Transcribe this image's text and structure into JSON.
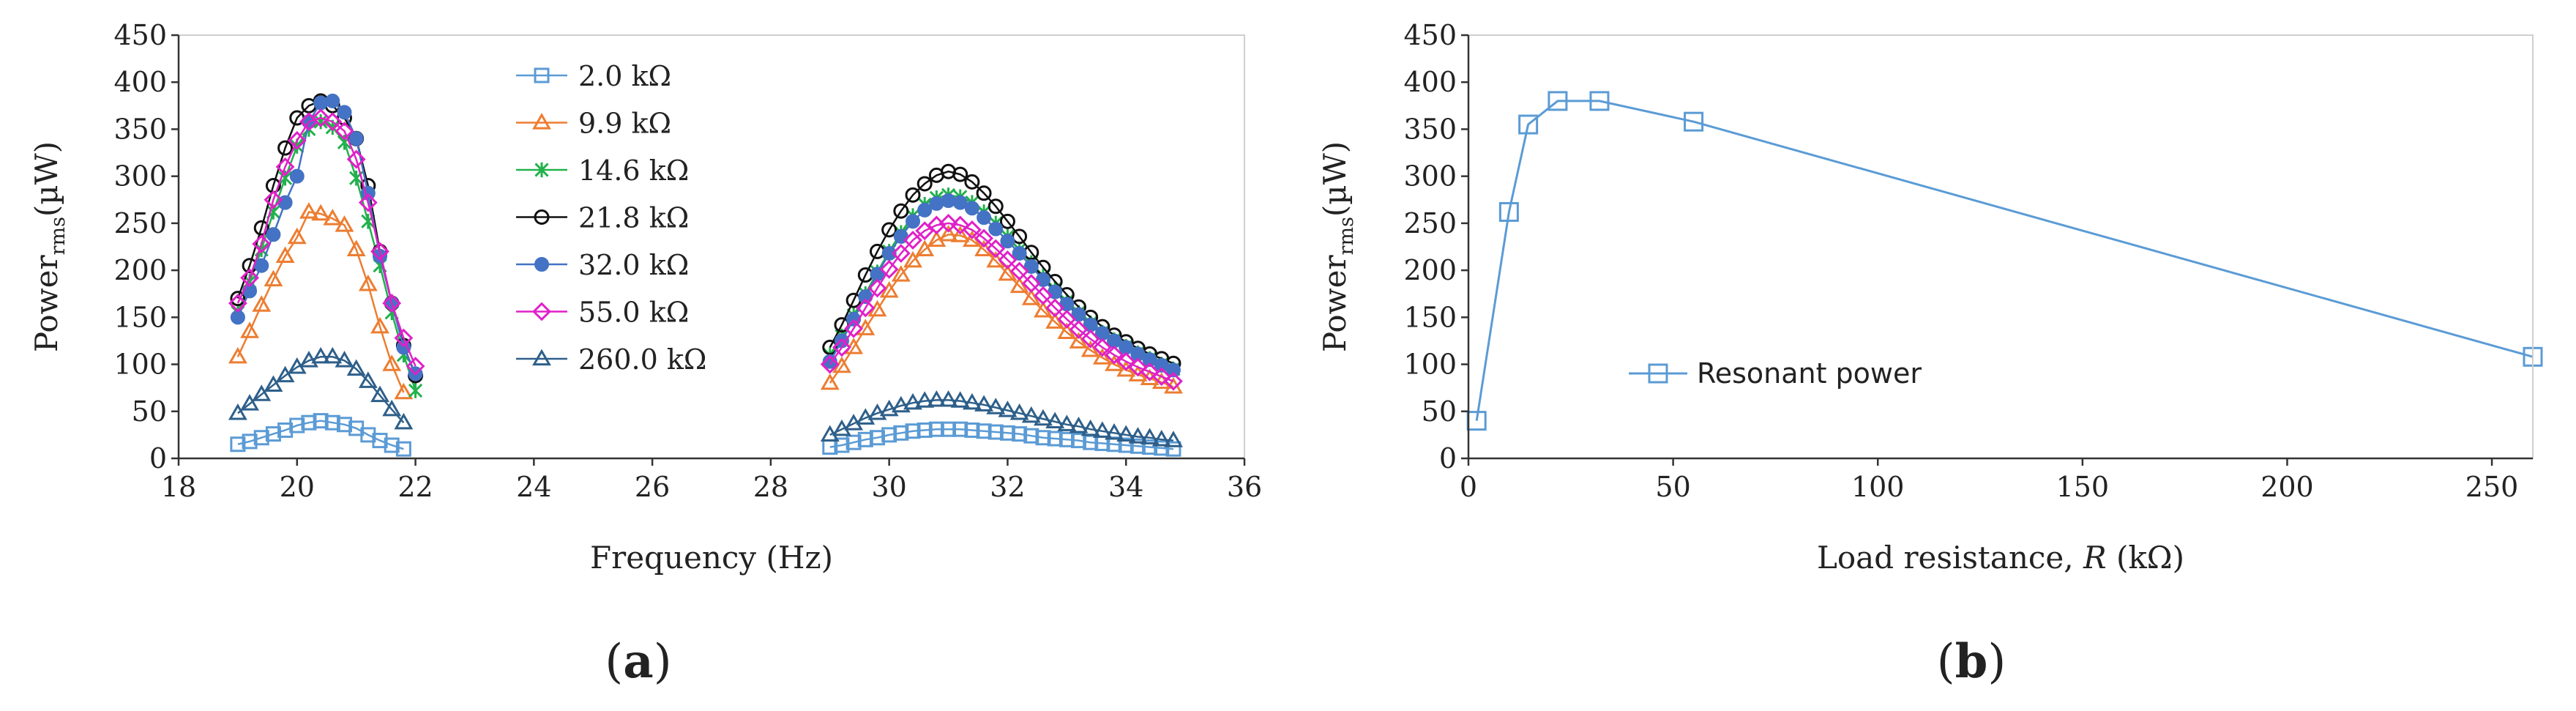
{
  "chart_data": [
    {
      "type": "line",
      "panel": "a",
      "panel_label": "a",
      "title": "",
      "xlabel": "Frequency (Hz)",
      "ylabel_main": "Power",
      "ylabel_sub": "rms",
      "ylabel_unit": "(µW)",
      "xlim": [
        18,
        36
      ],
      "ylim": [
        0,
        450
      ],
      "xticks": [
        18,
        20,
        22,
        24,
        26,
        28,
        30,
        32,
        34,
        36
      ],
      "yticks": [
        0,
        50,
        100,
        150,
        200,
        250,
        300,
        350,
        400,
        450
      ],
      "grid": false,
      "legend_position": "top-center",
      "series": [
        {
          "name": "2.0 kΩ",
          "color": "#5b9bd5",
          "marker": "square",
          "band1_x": [
            19.0,
            19.2,
            19.4,
            19.6,
            19.8,
            20.0,
            20.2,
            20.4,
            20.6,
            20.8,
            21.0,
            21.2,
            21.4,
            21.6,
            21.8
          ],
          "band1_y": [
            15,
            18,
            22,
            26,
            30,
            35,
            38,
            40,
            38,
            36,
            32,
            25,
            19,
            14,
            10
          ],
          "band2_x": [
            29.0,
            29.2,
            29.4,
            29.6,
            29.8,
            30.0,
            30.2,
            30.4,
            30.6,
            30.8,
            31.0,
            31.2,
            31.4,
            31.6,
            31.8,
            32.0,
            32.2,
            32.4,
            32.6,
            32.8,
            33.0,
            33.2,
            33.4,
            33.6,
            33.8,
            34.0,
            34.2,
            34.4,
            34.6,
            34.8
          ],
          "band2_y": [
            12,
            14,
            17,
            20,
            22,
            25,
            27,
            29,
            30,
            31,
            31,
            31,
            30,
            29,
            28,
            27,
            26,
            24,
            22,
            21,
            20,
            19,
            17,
            16,
            15,
            14,
            13,
            12,
            11,
            10
          ]
        },
        {
          "name": "9.9 kΩ",
          "color": "#ed7d31",
          "marker": "triangle",
          "band1_x": [
            19.0,
            19.2,
            19.4,
            19.6,
            19.8,
            20.0,
            20.2,
            20.4,
            20.6,
            20.8,
            21.0,
            21.2,
            21.4,
            21.6,
            21.8
          ],
          "band1_y": [
            108,
            135,
            163,
            190,
            215,
            235,
            262,
            260,
            255,
            248,
            222,
            185,
            140,
            100,
            70
          ],
          "band2_x": [
            29.0,
            29.2,
            29.4,
            29.6,
            29.8,
            30.0,
            30.2,
            30.4,
            30.6,
            30.8,
            31.0,
            31.2,
            31.4,
            31.6,
            31.8,
            32.0,
            32.2,
            32.4,
            32.6,
            32.8,
            33.0,
            33.2,
            33.4,
            33.6,
            33.8,
            34.0,
            34.2,
            34.4,
            34.6,
            34.8
          ],
          "band2_y": [
            80,
            98,
            118,
            138,
            158,
            178,
            195,
            210,
            222,
            232,
            238,
            237,
            232,
            222,
            210,
            196,
            183,
            170,
            157,
            145,
            134,
            124,
            115,
            107,
            100,
            94,
            89,
            85,
            81,
            76
          ]
        },
        {
          "name": "14.6 kΩ",
          "color": "#22b14c",
          "marker": "star",
          "band1_x": [
            19.0,
            19.2,
            19.4,
            19.6,
            19.8,
            20.0,
            20.2,
            20.4,
            20.6,
            20.8,
            21.0,
            21.2,
            21.4,
            21.6,
            21.8,
            22.0
          ],
          "band1_y": [
            155,
            188,
            222,
            262,
            298,
            332,
            350,
            358,
            352,
            336,
            298,
            252,
            205,
            155,
            110,
            72
          ],
          "band2_x": [
            29.0,
            29.2,
            29.4,
            29.6,
            29.8,
            30.0,
            30.2,
            30.4,
            30.6,
            30.8,
            31.0,
            31.2,
            31.4,
            31.6,
            31.8,
            32.0,
            32.2,
            32.4,
            32.6,
            32.8,
            33.0,
            33.2,
            33.4,
            33.6,
            33.8,
            34.0,
            34.2,
            34.4,
            34.6,
            34.8
          ],
          "band2_y": [
            110,
            130,
            152,
            175,
            198,
            220,
            240,
            258,
            270,
            277,
            280,
            278,
            272,
            262,
            250,
            236,
            222,
            208,
            194,
            180,
            167,
            155,
            144,
            134,
            126,
            119,
            112,
            106,
            100,
            95
          ]
        },
        {
          "name": "21.8 kΩ",
          "color": "#111111",
          "marker": "circle-open",
          "band1_x": [
            19.0,
            19.2,
            19.4,
            19.6,
            19.8,
            20.0,
            20.2,
            20.4,
            20.6,
            20.8,
            21.0,
            21.2,
            21.4,
            21.6,
            21.8,
            22.0
          ],
          "band1_y": [
            170,
            205,
            245,
            290,
            330,
            362,
            375,
            380,
            375,
            362,
            340,
            290,
            220,
            165,
            120,
            88
          ],
          "band2_x": [
            29.0,
            29.2,
            29.4,
            29.6,
            29.8,
            30.0,
            30.2,
            30.4,
            30.6,
            30.8,
            31.0,
            31.2,
            31.4,
            31.6,
            31.8,
            32.0,
            32.2,
            32.4,
            32.6,
            32.8,
            33.0,
            33.2,
            33.4,
            33.6,
            33.8,
            34.0,
            34.2,
            34.4,
            34.6,
            34.8
          ],
          "band2_y": [
            118,
            142,
            168,
            195,
            220,
            243,
            263,
            280,
            292,
            301,
            305,
            302,
            294,
            282,
            268,
            252,
            236,
            219,
            203,
            188,
            174,
            161,
            150,
            140,
            131,
            124,
            117,
            111,
            106,
            101
          ]
        },
        {
          "name": "32.0 kΩ",
          "color": "#4472c4",
          "marker": "circle-filled",
          "band1_x": [
            19.0,
            19.2,
            19.4,
            19.6,
            19.8,
            20.0,
            20.2,
            20.4,
            20.6,
            20.8,
            21.0,
            21.2,
            21.4,
            21.6,
            21.8,
            22.0
          ],
          "band1_y": [
            150,
            178,
            205,
            238,
            272,
            300,
            358,
            378,
            380,
            368,
            340,
            282,
            215,
            165,
            118,
            90
          ],
          "band2_x": [
            29.0,
            29.2,
            29.4,
            29.6,
            29.8,
            30.0,
            30.2,
            30.4,
            30.6,
            30.8,
            31.0,
            31.2,
            31.4,
            31.6,
            31.8,
            32.0,
            32.2,
            32.4,
            32.6,
            32.8,
            33.0,
            33.2,
            33.4,
            33.6,
            33.8,
            34.0,
            34.2,
            34.4,
            34.6,
            34.8
          ],
          "band2_y": [
            103,
            125,
            148,
            172,
            196,
            218,
            236,
            252,
            264,
            271,
            274,
            272,
            266,
            256,
            244,
            231,
            218,
            204,
            190,
            177,
            164,
            153,
            142,
            133,
            125,
            118,
            111,
            105,
            99,
            94
          ]
        },
        {
          "name": "55.0 kΩ",
          "color": "#e020c8",
          "marker": "diamond",
          "band1_x": [
            19.0,
            19.2,
            19.4,
            19.6,
            19.8,
            20.0,
            20.2,
            20.4,
            20.6,
            20.8,
            21.0,
            21.2,
            21.4,
            21.6,
            21.8,
            22.0
          ],
          "band1_y": [
            165,
            192,
            228,
            275,
            310,
            338,
            358,
            362,
            358,
            348,
            318,
            272,
            220,
            165,
            128,
            98
          ],
          "band2_x": [
            29.0,
            29.2,
            29.4,
            29.6,
            29.8,
            30.0,
            30.2,
            30.4,
            30.6,
            30.8,
            31.0,
            31.2,
            31.4,
            31.6,
            31.8,
            32.0,
            32.2,
            32.4,
            32.6,
            32.8,
            33.0,
            33.2,
            33.4,
            33.6,
            33.8,
            34.0,
            34.2,
            34.4,
            34.6,
            34.8
          ],
          "band2_y": [
            100,
            118,
            138,
            160,
            181,
            201,
            218,
            232,
            242,
            248,
            250,
            248,
            243,
            234,
            223,
            211,
            199,
            186,
            173,
            160,
            148,
            137,
            127,
            118,
            110,
            103,
            97,
            92,
            87,
            82
          ]
        },
        {
          "name": "260.0 kΩ",
          "color": "#2e5f8a",
          "marker": "triangle",
          "band1_x": [
            19.0,
            19.2,
            19.4,
            19.6,
            19.8,
            20.0,
            20.2,
            20.4,
            20.6,
            20.8,
            21.0,
            21.2,
            21.4,
            21.6,
            21.8
          ],
          "band1_y": [
            48,
            58,
            68,
            78,
            88,
            97,
            104,
            108,
            108,
            104,
            95,
            82,
            67,
            52,
            38
          ],
          "band2_x": [
            29.0,
            29.2,
            29.4,
            29.6,
            29.8,
            30.0,
            30.2,
            30.4,
            30.6,
            30.8,
            31.0,
            31.2,
            31.4,
            31.6,
            31.8,
            32.0,
            32.2,
            32.4,
            32.6,
            32.8,
            33.0,
            33.2,
            33.4,
            33.6,
            33.8,
            34.0,
            34.2,
            34.4,
            34.6,
            34.8
          ],
          "band2_y": [
            25,
            31,
            37,
            43,
            48,
            52,
            56,
            59,
            61,
            62,
            62,
            61,
            59,
            57,
            54,
            51,
            48,
            45,
            42,
            39,
            36,
            34,
            31,
            29,
            27,
            25,
            23,
            22,
            20,
            19
          ]
        }
      ]
    },
    {
      "type": "line",
      "panel": "b",
      "panel_label": "b",
      "title": "",
      "xlabel_pre": "Load resistance,",
      "xlabel_var": "R",
      "xlabel_unit": "(kΩ)",
      "ylabel_main": "Power",
      "ylabel_sub": "rms",
      "ylabel_unit": "(µW)",
      "xlim": [
        0,
        260
      ],
      "ylim": [
        0,
        450
      ],
      "xticks": [
        0,
        50,
        100,
        150,
        200,
        250
      ],
      "yticks": [
        0,
        50,
        100,
        150,
        200,
        250,
        300,
        350,
        400,
        450
      ],
      "grid": false,
      "legend_position": "center-left",
      "series": [
        {
          "name": "Resonant power",
          "color": "#5b9bd5",
          "marker": "square",
          "x": [
            2.0,
            9.9,
            14.6,
            21.8,
            32.0,
            55.0,
            260.0
          ],
          "y": [
            40,
            262,
            355,
            380,
            380,
            358,
            108
          ]
        }
      ]
    }
  ]
}
